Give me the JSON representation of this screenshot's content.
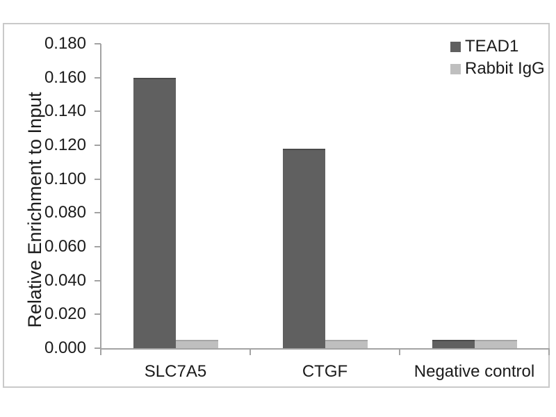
{
  "chart_data": {
    "type": "bar",
    "title": "",
    "categories": [
      "SLC7A5",
      "CTGF",
      "Negative control"
    ],
    "series": [
      {
        "name": "TEAD1",
        "color": "#606060",
        "edge_color": "#4a4a4a",
        "values": [
          0.16,
          0.118,
          0.005
        ]
      },
      {
        "name": "Rabbit IgG",
        "color": "#bfbfbf",
        "edge_color": "#a6a6a6",
        "values": [
          0.005,
          0.005,
          0.005
        ]
      }
    ],
    "xlabel": "",
    "ylabel": "Relative Enrichment to Input",
    "ylim": [
      0,
      0.18
    ],
    "ytick_step": 0.02,
    "ytick_decimals": 3,
    "ytick_labels": [
      "0.000",
      "0.020",
      "0.040",
      "0.060",
      "0.080",
      "0.100",
      "0.120",
      "0.140",
      "0.160",
      "0.180"
    ],
    "grid": false,
    "legend_position": "top-right",
    "bar_layout": "grouped-adjacent"
  },
  "colors": {
    "text": "#1b1b1b",
    "axis": "#a3a3a3",
    "frame": "#c9c9c9",
    "background": "#ffffff"
  }
}
